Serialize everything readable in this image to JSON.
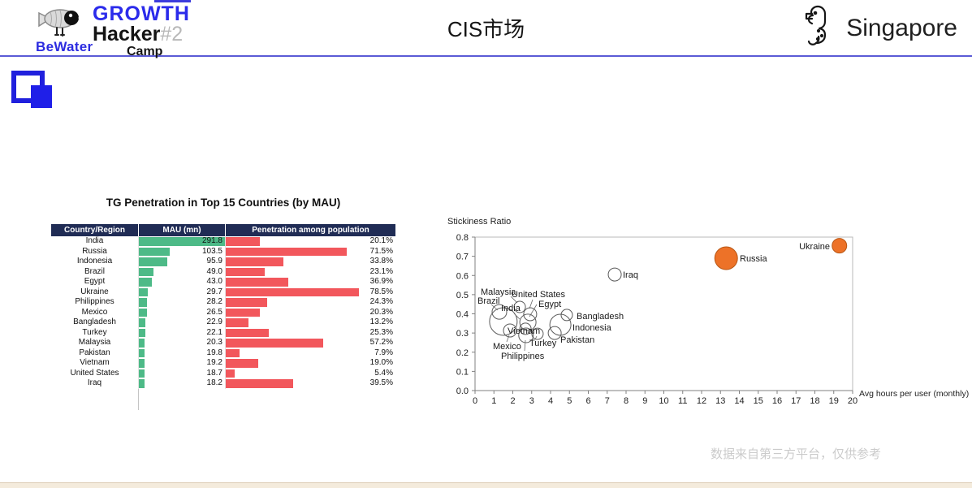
{
  "page": {
    "header": {
      "logo": {
        "growth": "GROWTH",
        "hacker": "Hacker",
        "number": "#2",
        "camp": "Camp",
        "bewater": "BeWater"
      },
      "title": "CIS市场",
      "region": "Singapore"
    },
    "footer_note": "数据来自第三方平台，仅供参考"
  },
  "chart_data": [
    {
      "type": "table",
      "title": "TG Penetration in Top 15 Countries (by MAU)",
      "columns": [
        "Country/Region",
        "MAU (mn)",
        "Penetration among population"
      ],
      "bar_colors": {
        "mau": "#4dba87",
        "penetration": "#f2575c"
      },
      "header_bg": "#202c55",
      "mau_axis_max": 291.8,
      "penetration_axis_max": 100,
      "rows": [
        [
          "India",
          291.8,
          20.1
        ],
        [
          "Russia",
          103.5,
          71.5
        ],
        [
          "Indonesia",
          95.9,
          33.8
        ],
        [
          "Brazil",
          49.0,
          23.1
        ],
        [
          "Egypt",
          43.0,
          36.9
        ],
        [
          "Ukraine",
          29.7,
          78.5
        ],
        [
          "Philippines",
          28.2,
          24.3
        ],
        [
          "Mexico",
          26.5,
          20.3
        ],
        [
          "Bangladesh",
          22.9,
          13.2
        ],
        [
          "Turkey",
          22.1,
          25.3
        ],
        [
          "Malaysia",
          20.3,
          57.2
        ],
        [
          "Pakistan",
          19.8,
          7.9
        ],
        [
          "Vietnam",
          19.2,
          19.0
        ],
        [
          "United States",
          18.7,
          5.4
        ],
        [
          "Iraq",
          18.2,
          39.5
        ]
      ]
    },
    {
      "type": "scatter",
      "title": "",
      "xlabel": "Avg hours per user (monthly)",
      "ylabel": "Stickiness Ratio",
      "xlim": [
        0,
        20
      ],
      "ylim": [
        0.0,
        0.8
      ],
      "x_tick_step": 1,
      "y_tick_step": 0.1,
      "grid": false,
      "colors": {
        "bubble_orange": "#ed7228",
        "bubble_orange_stroke": "#b85715",
        "bubble_outline": "#5a5a5a"
      },
      "points": [
        {
          "name": "Ukraine",
          "x": 19.3,
          "y": 0.755,
          "r": 9,
          "fill": "orange",
          "anchor": "end",
          "lx": 477,
          "ly": 45,
          "leader": null
        },
        {
          "name": "Russia",
          "x": 13.3,
          "y": 0.69,
          "r": 14,
          "fill": "orange",
          "anchor": "start",
          "lx": 366,
          "ly": 60,
          "leader": null
        },
        {
          "name": "Iraq",
          "x": 7.4,
          "y": 0.605,
          "r": 8,
          "fill": "white",
          "anchor": "start",
          "lx": 222,
          "ly": 80,
          "leader": null
        },
        {
          "name": "India",
          "x": 1.5,
          "y": 0.36,
          "r": 17,
          "fill": "white",
          "anchor": "start",
          "lx": 72,
          "ly": 121,
          "leader": [
            88,
            124,
            95,
            131
          ]
        },
        {
          "name": "Malaysia",
          "x": 2.37,
          "y": 0.436,
          "r": 7,
          "fill": "white",
          "anchor": "start",
          "lx": 47,
          "ly": 101,
          "leader": [
            84,
            103,
            92,
            111
          ]
        },
        {
          "name": "Brazil",
          "x": 1.29,
          "y": 0.41,
          "r": 9,
          "fill": "white",
          "anchor": "start",
          "lx": 43,
          "ly": 112,
          "leader": [
            60,
            113,
            68,
            120
          ]
        },
        {
          "name": "United States",
          "x": 2.92,
          "y": 0.398,
          "r": 8,
          "fill": "white",
          "anchor": "start",
          "lx": 85,
          "ly": 104,
          "leader": [
            111,
            107,
            107,
            118
          ]
        },
        {
          "name": "Egypt",
          "x": 2.8,
          "y": 0.356,
          "r": 10,
          "fill": "white",
          "anchor": "start",
          "lx": 118,
          "ly": 116,
          "leader": [
            116,
            113,
            107,
            128
          ]
        },
        {
          "name": "Vietnam",
          "x": 2.67,
          "y": 0.322,
          "r": 7,
          "fill": "white",
          "anchor": "start",
          "lx": 80,
          "ly": 149,
          "leader": null
        },
        {
          "name": "Mexico",
          "x": 1.85,
          "y": 0.313,
          "r": 8,
          "fill": "white",
          "anchor": "start",
          "lx": 62,
          "ly": 168,
          "leader": [
            79,
            159,
            82,
            151
          ]
        },
        {
          "name": "Turkey",
          "x": 3.31,
          "y": 0.296,
          "r": 7,
          "fill": "white",
          "anchor": "start",
          "lx": 107,
          "ly": 164,
          "leader": [
            114,
            156,
            116,
            152
          ]
        },
        {
          "name": "Philippines",
          "x": 2.7,
          "y": 0.288,
          "r": 9,
          "fill": "white",
          "anchor": "start",
          "lx": 72,
          "ly": 180,
          "leader": [
            101,
            170,
            102,
            157
          ]
        },
        {
          "name": "Bangladesh",
          "x": 4.86,
          "y": 0.394,
          "r": 7,
          "fill": "white",
          "anchor": "start",
          "lx": 165,
          "ly": 131,
          "leader": null
        },
        {
          "name": "Indonesia",
          "x": 4.52,
          "y": 0.343,
          "r": 13,
          "fill": "white",
          "anchor": "start",
          "lx": 160,
          "ly": 145,
          "leader": null
        },
        {
          "name": "Pakistan",
          "x": 4.22,
          "y": 0.3,
          "r": 8,
          "fill": "white",
          "anchor": "start",
          "lx": 145,
          "ly": 160,
          "leader": null
        }
      ]
    }
  ]
}
